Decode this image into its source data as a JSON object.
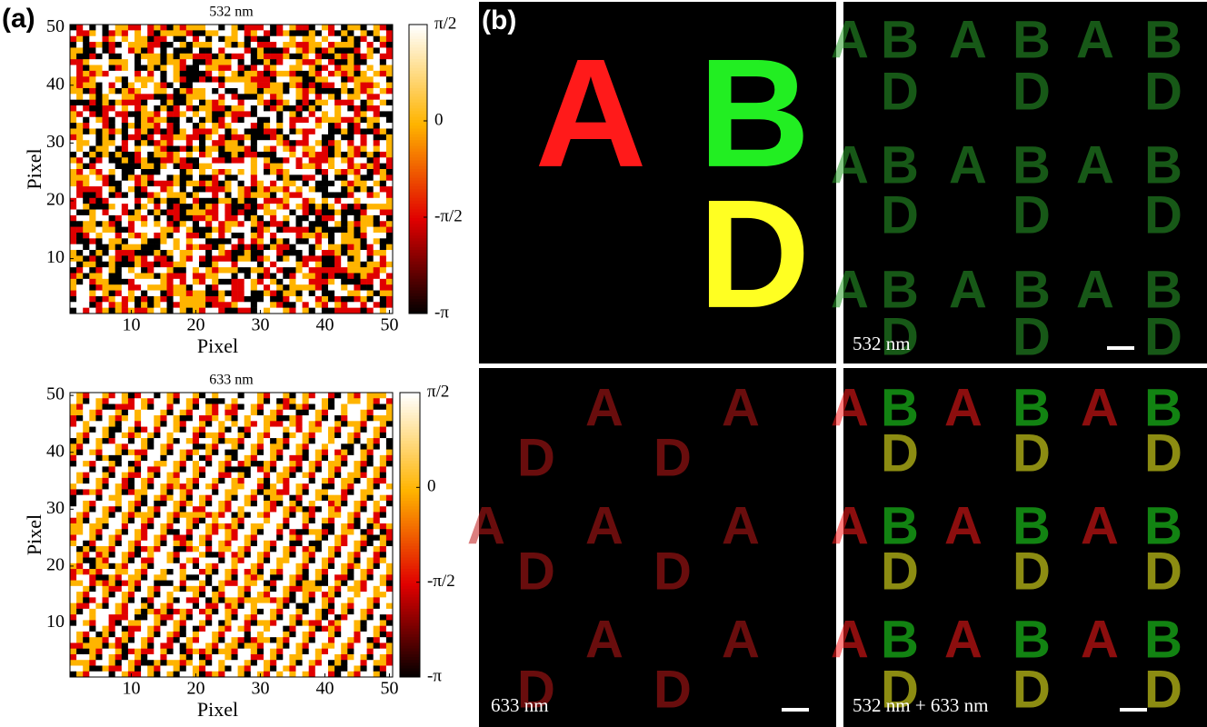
{
  "panel_a": {
    "label": "(a)",
    "maps": [
      {
        "title": "532 nm",
        "xlabel": "Pixel",
        "ylabel": "Pixel",
        "xlim": [
          0.5,
          50.5
        ],
        "ylim": [
          0.5,
          50.5
        ],
        "xticks": [
          10,
          20,
          30,
          40,
          50
        ],
        "yticks": [
          10,
          20,
          30,
          40,
          50
        ],
        "clim": [
          -3.1416,
          1.5708
        ],
        "cticks": [
          {
            "value": -3.1416,
            "label": "-π"
          },
          {
            "value": -1.5708,
            "label": "-π/2"
          },
          {
            "value": 0,
            "label": "0"
          },
          {
            "value": 1.5708,
            "label": "π/2"
          }
        ]
      },
      {
        "title": "633 nm",
        "xlabel": "Pixel",
        "ylabel": "Pixel",
        "xlim": [
          0.5,
          50.5
        ],
        "ylim": [
          0.5,
          50.5
        ],
        "xticks": [
          10,
          20,
          30,
          40,
          50
        ],
        "yticks": [
          10,
          20,
          30,
          40,
          50
        ],
        "clim": [
          -3.1416,
          1.5708
        ],
        "cticks": [
          {
            "value": -3.1416,
            "label": "-π"
          },
          {
            "value": -1.5708,
            "label": "-π/2"
          },
          {
            "value": 0,
            "label": "0"
          },
          {
            "value": 1.5708,
            "label": "π/2"
          }
        ]
      }
    ]
  },
  "panel_b": {
    "label": "(b)",
    "letter_colors": {
      "A": "#ff1a1a",
      "B": "#22ee22",
      "D": "#ffff22"
    },
    "target": {
      "letters": [
        [
          "A",
          "B"
        ],
        [
          null,
          "D"
        ]
      ]
    },
    "images": [
      {
        "caption": "532 nm",
        "tint": "#2aa02a",
        "rows": [
          [
            "A",
            "B",
            "A",
            "B",
            "A",
            "B"
          ],
          [
            null,
            "D",
            null,
            "D",
            null,
            "D"
          ],
          [
            "A",
            "B",
            "A",
            "B",
            "A",
            "B"
          ],
          [
            null,
            "D",
            null,
            "D",
            null,
            "D"
          ],
          [
            "A",
            "B",
            "A",
            "B",
            "A",
            "B"
          ],
          [
            null,
            "D",
            null,
            "D",
            null,
            "D"
          ]
        ]
      },
      {
        "caption": "633 nm",
        "tint": "#c01818",
        "rows": [
          [
            null,
            null,
            "A",
            null,
            "A"
          ],
          [
            null,
            "D",
            null,
            "D",
            null
          ],
          [
            "A",
            null,
            "A",
            null,
            "A"
          ],
          [
            null,
            "D",
            null,
            "D",
            null
          ],
          [
            null,
            null,
            "A",
            null,
            "A"
          ],
          [
            null,
            "D",
            null,
            "D",
            null
          ]
        ]
      },
      {
        "caption": "532 nm + 633 nm",
        "tint": null,
        "rows": [
          [
            "A",
            "B",
            "A",
            "B",
            "A",
            "B"
          ],
          [
            null,
            "D",
            null,
            "D",
            null,
            "D"
          ],
          [
            "A",
            "B",
            "A",
            "B",
            "A",
            "B"
          ],
          [
            null,
            "D",
            null,
            "D",
            null,
            "D"
          ],
          [
            "A",
            "B",
            "A",
            "B",
            "A",
            "B"
          ],
          [
            null,
            "D",
            null,
            "D",
            null,
            "D"
          ]
        ]
      }
    ]
  }
}
